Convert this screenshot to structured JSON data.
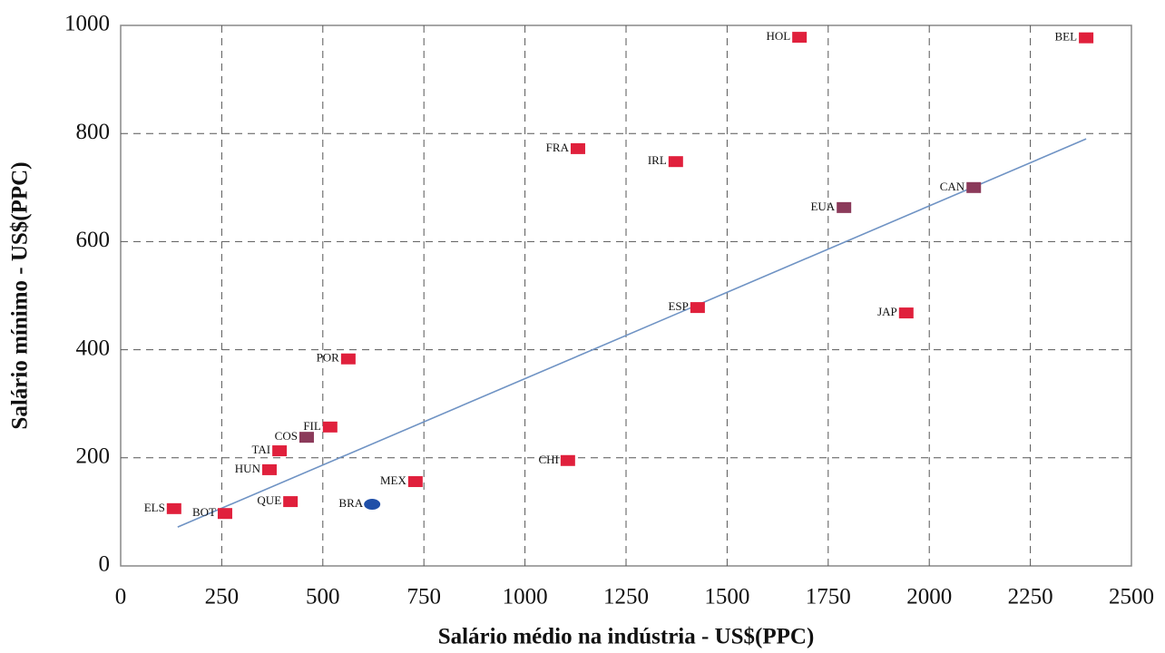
{
  "chart_data": {
    "type": "scatter",
    "xlabel": "Salário médio na indústria - US$(PPC)",
    "ylabel": "Salário mínimo - US$(PPC)",
    "xlim": [
      0,
      2500
    ],
    "xticks": [
      0,
      250,
      500,
      750,
      1000,
      1250,
      1500,
      1750,
      2000,
      2250,
      2500
    ],
    "ylim": [
      0,
      1000
    ],
    "yticks": [
      0,
      200,
      400,
      600,
      800,
      1000
    ],
    "grid": true,
    "series": [
      {
        "labels": [
          "ELS",
          "BOT",
          "QUE",
          "BRA",
          "HUN",
          "TAI",
          "COS",
          "FIL",
          "POR",
          "MEX",
          "CHI",
          "ESP",
          "FRA",
          "IRL",
          "HOL",
          "BEL",
          "EUA",
          "CAN",
          "JAP"
        ],
        "x": [
          132,
          258,
          420,
          622,
          368,
          393,
          460,
          518,
          563,
          729,
          1106,
          1427,
          1131,
          1373,
          1679,
          2388,
          1789,
          2110,
          1943
        ],
        "values": [
          106,
          97,
          119,
          114,
          178,
          213,
          238,
          257,
          383,
          156,
          195,
          478,
          772,
          748,
          978,
          977,
          663,
          700,
          468
        ],
        "colors": [
          "#e0203c",
          "#e0203c",
          "#e0203c",
          "#1f4fa8",
          "#e0203c",
          "#e0203c",
          "#8b3a5a",
          "#e0203c",
          "#e0203c",
          "#e0203c",
          "#e0203c",
          "#e0203c",
          "#e0203c",
          "#e0203c",
          "#e0203c",
          "#e0203c",
          "#8b3a5a",
          "#8b3a5a",
          "#e0203c"
        ],
        "shapes": [
          "square",
          "square",
          "square",
          "circle",
          "square",
          "square",
          "square",
          "square",
          "square",
          "square",
          "square",
          "square",
          "square",
          "square",
          "square",
          "square",
          "square",
          "square",
          "square"
        ]
      }
    ],
    "trendline": {
      "x": [
        141,
        2388
      ],
      "values": [
        72,
        790
      ],
      "color": "#6f93c4"
    }
  }
}
